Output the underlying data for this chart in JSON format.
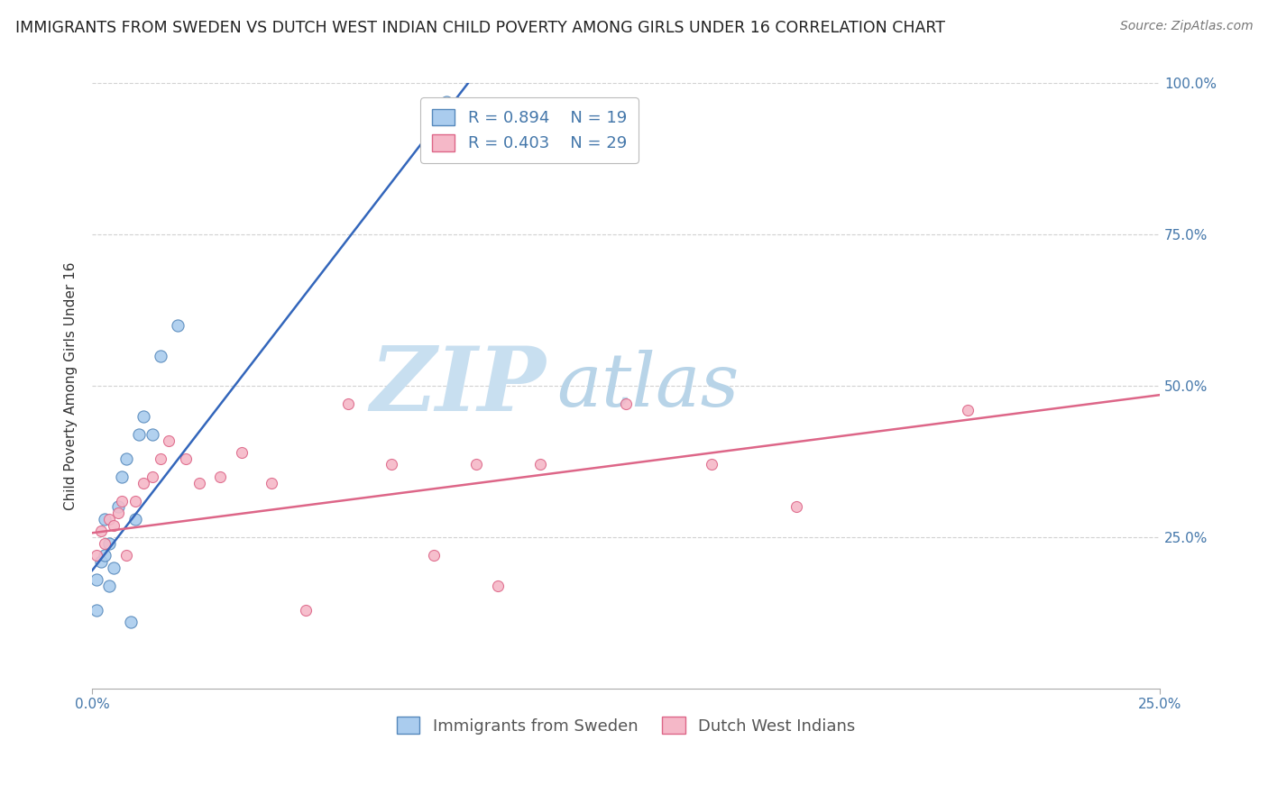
{
  "title": "IMMIGRANTS FROM SWEDEN VS DUTCH WEST INDIAN CHILD POVERTY AMONG GIRLS UNDER 16 CORRELATION CHART",
  "source": "Source: ZipAtlas.com",
  "ylabel": "Child Poverty Among Girls Under 16",
  "xlim": [
    0.0,
    0.25
  ],
  "ylim": [
    0.0,
    1.0
  ],
  "xticks": [
    0.0,
    0.25
  ],
  "xtick_labels": [
    "0.0%",
    "25.0%"
  ],
  "ytick_values": [
    0.25,
    0.5,
    0.75,
    1.0
  ],
  "ytick_labels": [
    "25.0%",
    "50.0%",
    "75.0%",
    "100.0%"
  ],
  "blue_scatter": {
    "x": [
      0.001,
      0.001,
      0.002,
      0.003,
      0.003,
      0.004,
      0.004,
      0.005,
      0.006,
      0.007,
      0.008,
      0.009,
      0.01,
      0.011,
      0.012,
      0.014,
      0.016,
      0.02,
      0.083
    ],
    "y": [
      0.18,
      0.13,
      0.21,
      0.22,
      0.28,
      0.24,
      0.17,
      0.2,
      0.3,
      0.35,
      0.38,
      0.11,
      0.28,
      0.42,
      0.45,
      0.42,
      0.55,
      0.6,
      0.97
    ],
    "color": "#aaccee",
    "edge_color": "#5588bb",
    "R": 0.894,
    "N": 19,
    "label": "Immigrants from Sweden",
    "size": 90
  },
  "pink_scatter": {
    "x": [
      0.001,
      0.002,
      0.003,
      0.004,
      0.005,
      0.006,
      0.007,
      0.008,
      0.01,
      0.012,
      0.014,
      0.016,
      0.018,
      0.022,
      0.025,
      0.03,
      0.035,
      0.042,
      0.05,
      0.06,
      0.07,
      0.08,
      0.09,
      0.095,
      0.105,
      0.125,
      0.145,
      0.165,
      0.205
    ],
    "y": [
      0.22,
      0.26,
      0.24,
      0.28,
      0.27,
      0.29,
      0.31,
      0.22,
      0.31,
      0.34,
      0.35,
      0.38,
      0.41,
      0.38,
      0.34,
      0.35,
      0.39,
      0.34,
      0.13,
      0.47,
      0.37,
      0.22,
      0.37,
      0.17,
      0.37,
      0.47,
      0.37,
      0.3,
      0.46
    ],
    "color": "#f5b8c8",
    "edge_color": "#dd6688",
    "R": 0.403,
    "N": 29,
    "label": "Dutch West Indians",
    "size": 75
  },
  "blue_line": {
    "x0": 0.0,
    "y0": 0.195,
    "x1": 0.088,
    "y1": 1.0,
    "color": "#3366bb"
  },
  "pink_line": {
    "x0": 0.0,
    "y0": 0.257,
    "x1": 0.25,
    "y1": 0.485,
    "color": "#dd6688"
  },
  "background_color": "#ffffff",
  "grid_color": "#cccccc",
  "title_fontsize": 12.5,
  "axis_label_fontsize": 11,
  "tick_fontsize": 11,
  "legend_fontsize": 13
}
